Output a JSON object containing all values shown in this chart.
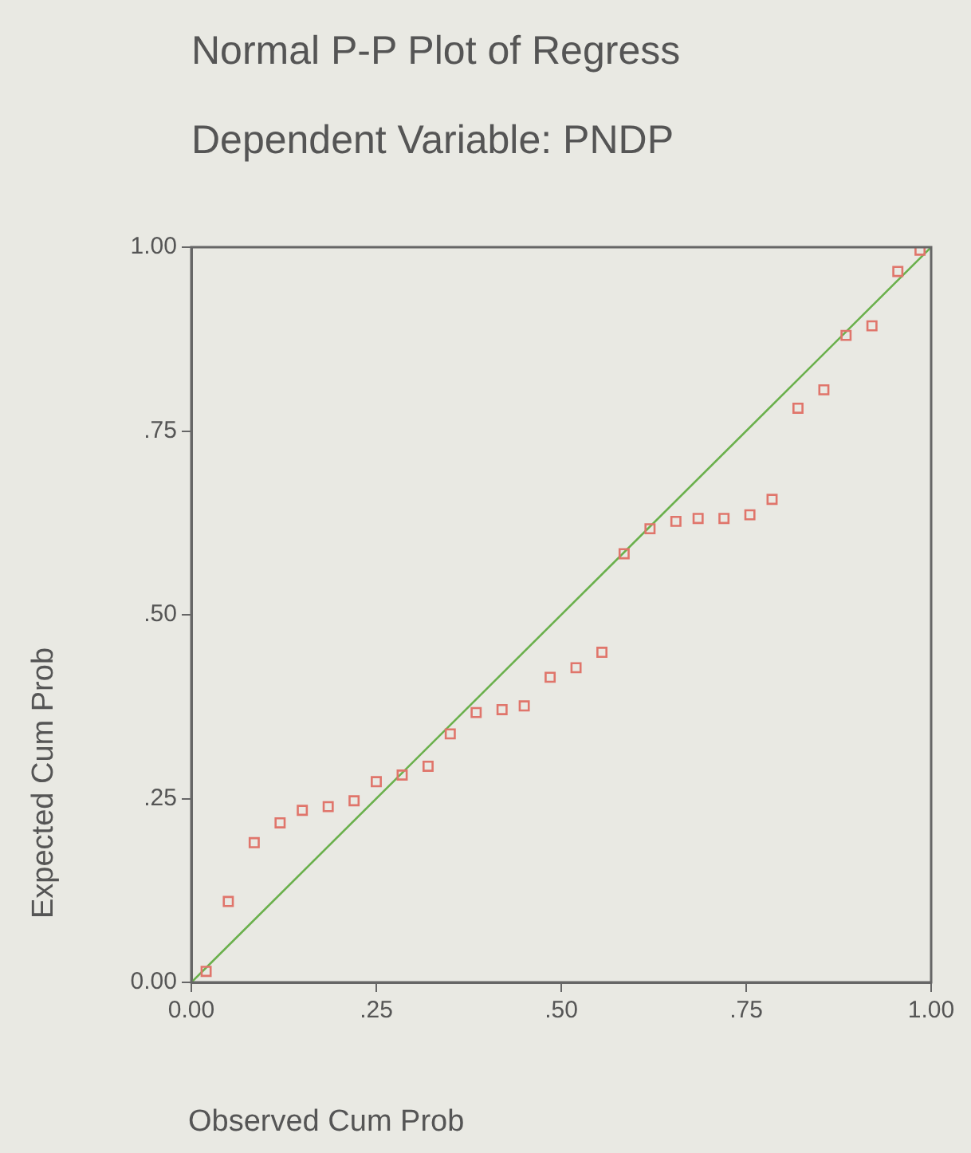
{
  "chart_data": {
    "type": "scatter",
    "title": "Normal P-P Plot of Regress",
    "subtitle": "Dependent Variable: PNDP",
    "xlabel": "Observed Cum Prob",
    "ylabel": "Expected Cum Prob",
    "xlim": [
      0,
      1
    ],
    "ylim": [
      0,
      1
    ],
    "xticks": [
      {
        "value": 0,
        "label": "0.00"
      },
      {
        "value": 0.25,
        "label": ".25"
      },
      {
        "value": 0.5,
        "label": ".50"
      },
      {
        "value": 0.75,
        "label": ".75"
      },
      {
        "value": 1,
        "label": "1.00"
      }
    ],
    "yticks": [
      {
        "value": 0,
        "label": "0.00"
      },
      {
        "value": 0.25,
        "label": ".25"
      },
      {
        "value": 0.5,
        "label": ".50"
      },
      {
        "value": 0.75,
        "label": ".75"
      },
      {
        "value": 1,
        "label": "1.00"
      }
    ],
    "grid": false,
    "legend": false,
    "series": [
      {
        "type": "scatter",
        "marker": "square",
        "color": "#e0756b",
        "x": [
          0.02,
          0.05,
          0.085,
          0.12,
          0.15,
          0.185,
          0.22,
          0.25,
          0.285,
          0.32,
          0.35,
          0.385,
          0.42,
          0.45,
          0.485,
          0.52,
          0.555,
          0.585,
          0.62,
          0.655,
          0.685,
          0.72,
          0.755,
          0.785,
          0.82,
          0.855,
          0.885,
          0.92,
          0.955,
          0.985
        ],
        "values": [
          0.015,
          0.11,
          0.19,
          0.217,
          0.234,
          0.239,
          0.247,
          0.273,
          0.282,
          0.294,
          0.338,
          0.367,
          0.371,
          0.376,
          0.415,
          0.428,
          0.449,
          0.583,
          0.617,
          0.627,
          0.631,
          0.631,
          0.636,
          0.657,
          0.781,
          0.806,
          0.88,
          0.893,
          0.967,
          0.996
        ]
      },
      {
        "type": "line",
        "marker": "none",
        "color": "#6ab04c",
        "x": [
          0,
          1
        ],
        "values": [
          0,
          1
        ]
      }
    ]
  }
}
